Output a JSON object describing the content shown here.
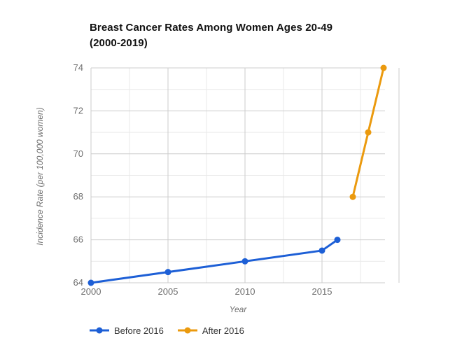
{
  "header": {
    "title_line1": "Breast Cancer Rates Among Women Ages 20-49",
    "title_line2": "(2000-2019)"
  },
  "colors": {
    "background": "#ffffff",
    "title_text": "#111111",
    "tick_text": "#6e6e6e",
    "axis_title_text": "#6e6e6e",
    "legend_text": "#333333",
    "gridline_major": "#cccccc",
    "gridline_minor": "#e9e9e9",
    "series_blue": "#1d5fd6",
    "series_orange": "#eb9a0e"
  },
  "chart_data": {
    "type": "line",
    "title": "Breast Cancer Rates Among Women Ages 20-49 (2000-2019)",
    "xlabel": "Year",
    "ylabel": "Incidence Rate (per 100,000 women)",
    "xlim": [
      2000,
      2020
    ],
    "ylim": [
      64,
      74
    ],
    "x_ticks": [
      2000,
      2005,
      2010,
      2015
    ],
    "y_ticks": [
      64,
      66,
      68,
      70,
      72,
      74
    ],
    "x_major_step": 5,
    "x_minor_step": 2.5,
    "y_major_step": 2,
    "y_minor_step": 1,
    "grid": true,
    "legend_position": "bottom",
    "series": [
      {
        "name": "Before 2016",
        "color": "#1d5fd6",
        "x": [
          2000,
          2005,
          2010,
          2015,
          2016
        ],
        "values": [
          64,
          64.5,
          65,
          65.5,
          66
        ]
      },
      {
        "name": "After 2016",
        "color": "#eb9a0e",
        "x": [
          2017,
          2018,
          2019
        ],
        "values": [
          68,
          71,
          74
        ]
      }
    ]
  }
}
